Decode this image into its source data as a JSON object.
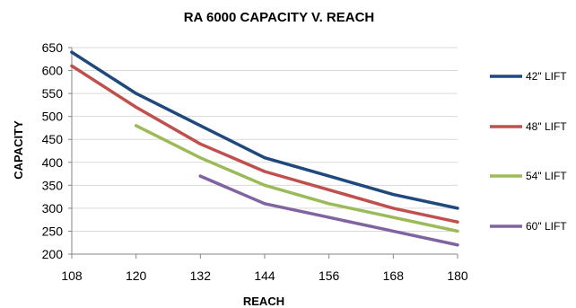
{
  "chart_data": {
    "type": "line",
    "title": "RA 6000 CAPACITY V. REACH",
    "xlabel": "REACH",
    "ylabel": "CAPACITY",
    "x": [
      108,
      120,
      132,
      144,
      156,
      168,
      180
    ],
    "xlim": [
      108,
      180
    ],
    "ylim": [
      200,
      650
    ],
    "yticks": [
      200,
      250,
      300,
      350,
      400,
      450,
      500,
      550,
      600,
      650
    ],
    "grid": true,
    "legend_position": "right",
    "series": [
      {
        "name": "42\" LIFT",
        "color": "#1f497d",
        "values": [
          640,
          550,
          480,
          410,
          370,
          330,
          300
        ]
      },
      {
        "name": "48\" LIFT",
        "color": "#c0504d",
        "values": [
          610,
          520,
          440,
          380,
          340,
          300,
          270
        ]
      },
      {
        "name": "54\" LIFT",
        "color": "#9bbb59",
        "values": [
          null,
          480,
          410,
          350,
          310,
          280,
          250
        ]
      },
      {
        "name": "60\" LIFT",
        "color": "#8064a2",
        "values": [
          null,
          null,
          370,
          310,
          280,
          250,
          220
        ]
      }
    ]
  }
}
